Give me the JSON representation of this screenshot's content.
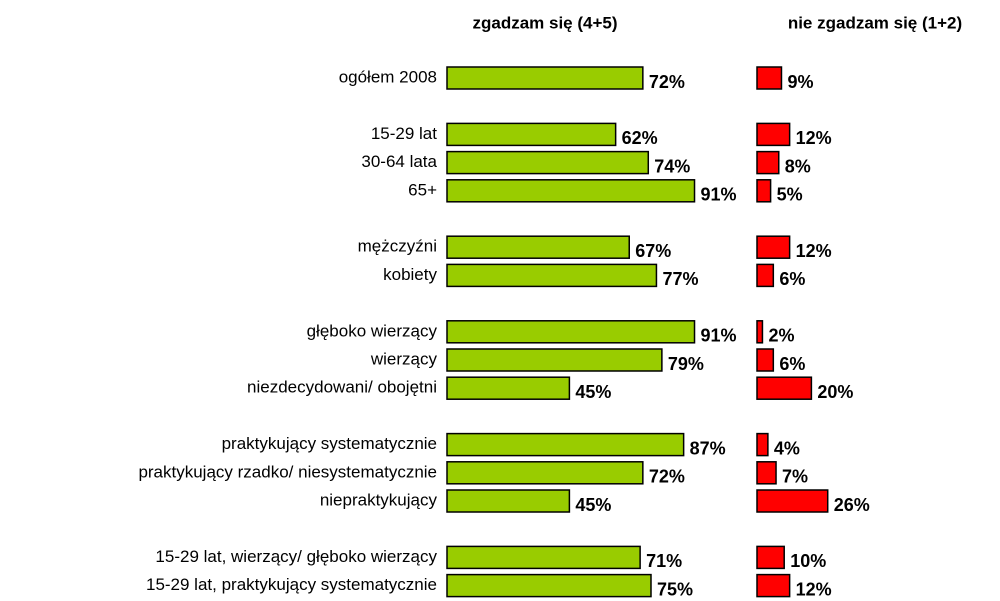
{
  "chart_data": {
    "type": "bar",
    "orientation": "horizontal",
    "categories": [
      "ogółem 2008",
      null,
      "15-29 lat",
      "30-64 lata",
      "65+",
      null,
      "mężczyźni",
      "kobiety",
      null,
      "głęboko wierzący",
      "wierzący",
      "niezdecydowani/ obojętni",
      null,
      "praktykujący systematycznie",
      "praktykujący rzadko/ niesystematycznie",
      "niepraktykujący",
      null,
      "15-29 lat, wierzący/ głęboko wierzący",
      "15-29 lat, praktykujący systematycznie"
    ],
    "series": [
      {
        "name": "zgadzam się (4+5)",
        "color": "#99cc00",
        "values": [
          72,
          null,
          62,
          74,
          91,
          null,
          67,
          77,
          null,
          91,
          79,
          45,
          null,
          87,
          72,
          45,
          null,
          71,
          75
        ],
        "value_labels": [
          "72%",
          null,
          "62%",
          "74%",
          "91%",
          null,
          "67%",
          "77%",
          null,
          "91%",
          "79%",
          "45%",
          null,
          "87%",
          "72%",
          "45%",
          null,
          "71%",
          "75%"
        ]
      },
      {
        "name": "nie zgadzam się (1+2)",
        "color": "#ff0000",
        "values": [
          9,
          null,
          12,
          8,
          5,
          null,
          12,
          6,
          null,
          2,
          6,
          20,
          null,
          4,
          7,
          26,
          null,
          10,
          12
        ],
        "value_labels": [
          "9%",
          null,
          "12%",
          "8%",
          "5%",
          null,
          "12%",
          "6%",
          null,
          "2%",
          "6%",
          "20%",
          null,
          "4%",
          "7%",
          "26%",
          null,
          "10%",
          "12%"
        ]
      }
    ]
  }
}
